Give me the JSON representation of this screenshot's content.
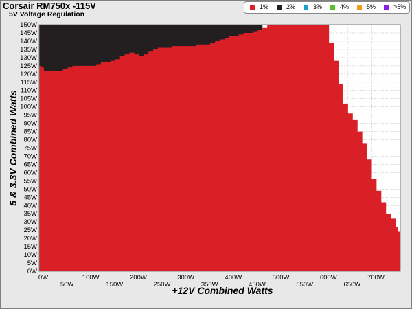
{
  "chart_data": {
    "type": "area",
    "title": "Corsair RM750x -115V",
    "subtitle": "5V Voltage Regulation",
    "xlabel": "+12V Combined Watts",
    "ylabel": "5 & 3.3V Combined Watts",
    "x_ticks": [
      "0W",
      "50W",
      "100W",
      "150W",
      "200W",
      "250W",
      "300W",
      "350W",
      "400W",
      "450W",
      "500W",
      "550W",
      "600W",
      "650W",
      "700W"
    ],
    "y_ticks": [
      "0W",
      "5W",
      "10W",
      "15W",
      "20W",
      "25W",
      "30W",
      "35W",
      "40W",
      "45W",
      "50W",
      "55W",
      "60W",
      "65W",
      "70W",
      "75W",
      "80W",
      "85W",
      "90W",
      "95W",
      "100W",
      "105W",
      "110W",
      "115W",
      "120W",
      "125W",
      "130W",
      "135W",
      "140W",
      "145W",
      "150W"
    ],
    "xlim": [
      0,
      760
    ],
    "ylim": [
      0,
      150
    ],
    "legend": [
      {
        "label": "1%",
        "color": "#d92027"
      },
      {
        "label": "2%",
        "color": "#231f20"
      },
      {
        "label": "3%",
        "color": "#1ba1d6"
      },
      {
        "label": "4%",
        "color": "#56c02b"
      },
      {
        "label": "5%",
        "color": "#f39c12"
      },
      {
        "label": ">5%",
        "color": "#8e1ee6"
      }
    ],
    "legend_position": "top-right",
    "grid": true,
    "series": [
      {
        "name": "2%",
        "color": "#231f20",
        "x": [
          0,
          470
        ],
        "values": [
          150,
          150
        ]
      },
      {
        "name": "1%",
        "color": "#d92027",
        "x": [
          0,
          5,
          10,
          20,
          30,
          40,
          50,
          60,
          70,
          80,
          90,
          100,
          110,
          120,
          130,
          140,
          150,
          160,
          170,
          180,
          190,
          200,
          210,
          220,
          230,
          240,
          250,
          260,
          270,
          280,
          290,
          300,
          310,
          320,
          330,
          340,
          350,
          360,
          370,
          380,
          390,
          400,
          410,
          420,
          430,
          440,
          450,
          460,
          470,
          480,
          490,
          500,
          510,
          520,
          530,
          540,
          550,
          560,
          570,
          580,
          590,
          600,
          610,
          620,
          630,
          640,
          650,
          660,
          670,
          680,
          690,
          700,
          710,
          720,
          730,
          740,
          750,
          755,
          760
        ],
        "values": [
          125,
          124,
          122,
          122,
          122,
          122,
          123,
          124,
          125,
          125,
          125,
          125,
          125,
          126,
          127,
          127,
          128,
          129,
          131,
          132,
          133,
          132,
          131,
          132,
          134,
          135,
          136,
          136,
          136,
          137,
          137,
          137,
          137,
          137,
          138,
          138,
          138,
          139,
          140,
          141,
          142,
          143,
          143,
          144,
          145,
          145,
          146,
          147,
          148,
          150,
          150,
          150,
          150,
          150,
          150,
          150,
          150,
          150,
          150,
          150,
          150,
          150,
          139,
          128,
          114,
          102,
          96,
          92,
          85,
          78,
          68,
          56,
          49,
          42,
          35,
          32,
          27,
          24,
          21
        ]
      }
    ]
  }
}
